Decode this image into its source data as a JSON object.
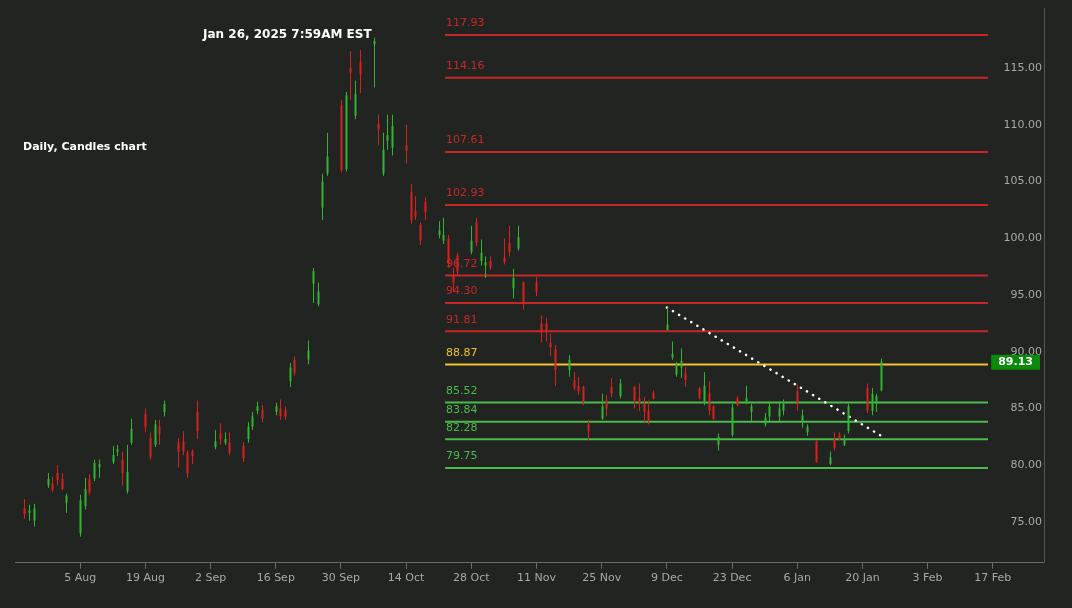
{
  "chart_data": {
    "type": "candlestick",
    "title": "Daily, Candles chart",
    "subtitle": "Jan 26, 2025 7:59AM EST",
    "xlim": [
      "2024-07-22",
      "2025-02-28"
    ],
    "xticks": [
      {
        "value": "2024-08-05",
        "label": "5 Aug"
      },
      {
        "value": "2024-08-19",
        "label": "19 Aug"
      },
      {
        "value": "2024-09-02",
        "label": "2 Sep"
      },
      {
        "value": "2024-09-16",
        "label": "16 Sep"
      },
      {
        "value": "2024-09-30",
        "label": "30 Sep"
      },
      {
        "value": "2024-10-14",
        "label": "14 Oct"
      },
      {
        "value": "2024-10-28",
        "label": "28 Oct"
      },
      {
        "value": "2024-11-11",
        "label": "11 Nov"
      },
      {
        "value": "2024-11-25",
        "label": "25 Nov"
      },
      {
        "value": "2024-12-09",
        "label": "9 Dec"
      },
      {
        "value": "2024-12-23",
        "label": "23 Dec"
      },
      {
        "value": "2025-01-06",
        "label": "6 Jan"
      },
      {
        "value": "2025-01-20",
        "label": "20 Jan"
      },
      {
        "value": "2025-02-03",
        "label": "3 Feb"
      },
      {
        "value": "2025-02-17",
        "label": "17 Feb"
      }
    ],
    "ylim": [
      71.4,
      120.3
    ],
    "yticks": [
      {
        "value": 75,
        "label": "75.00"
      },
      {
        "value": 80,
        "label": "80.00"
      },
      {
        "value": 85,
        "label": "85.00"
      },
      {
        "value": 90,
        "label": "90.00"
      },
      {
        "value": 95,
        "label": "95.00"
      },
      {
        "value": 100,
        "label": "100.00"
      },
      {
        "value": 105,
        "label": "105.00"
      },
      {
        "value": 110,
        "label": "110.00"
      },
      {
        "value": 115,
        "label": "115.00"
      }
    ],
    "grid": false,
    "legend": false,
    "series": [
      {
        "type": "candlestick",
        "color": "#2fb52f",
        "x": [
          "2024-07-25",
          "2024-07-26",
          "2024-07-29",
          "2024-08-02",
          "2024-08-05",
          "2024-08-06",
          "2024-08-08",
          "2024-08-09",
          "2024-08-12",
          "2024-08-13",
          "2024-08-15",
          "2024-08-16",
          "2024-08-21",
          "2024-08-23",
          "2024-09-03",
          "2024-09-05",
          "2024-09-10",
          "2024-09-11",
          "2024-09-12",
          "2024-09-16",
          "2024-09-19",
          "2024-09-23",
          "2024-09-24",
          "2024-09-25",
          "2024-09-26",
          "2024-09-27",
          "2024-10-01",
          "2024-10-03",
          "2024-10-07",
          "2024-10-09",
          "2024-10-10",
          "2024-10-11",
          "2024-10-21",
          "2024-10-22",
          "2024-10-28",
          "2024-10-30",
          "2024-10-31",
          "2024-11-06",
          "2024-11-07",
          "2024-11-18",
          "2024-11-25",
          "2024-11-29",
          "2024-12-09",
          "2024-12-10",
          "2024-12-11",
          "2024-12-12",
          "2024-12-17",
          "2024-12-20",
          "2024-12-23",
          "2024-12-26",
          "2024-12-27",
          "2024-12-30",
          "2024-12-31",
          "2025-01-02",
          "2025-01-03",
          "2025-01-07",
          "2025-01-08",
          "2025-01-13",
          "2025-01-16",
          "2025-01-17",
          "2025-01-22",
          "2025-01-23",
          "2025-01-24"
        ],
        "ohlc": [
          [
            75.8,
            76.5,
            75.1,
            76.0
          ],
          [
            75.1,
            76.6,
            74.6,
            76.2
          ],
          [
            78.2,
            79.3,
            78.0,
            78.8
          ],
          [
            76.7,
            77.5,
            75.8,
            77.3
          ],
          [
            74.0,
            77.4,
            73.7,
            76.9
          ],
          [
            76.4,
            78.9,
            76.1,
            77.9
          ],
          [
            78.8,
            80.5,
            78.6,
            80.2
          ],
          [
            79.8,
            80.5,
            78.9,
            80.1
          ],
          [
            80.3,
            81.7,
            80.1,
            80.9
          ],
          [
            81.2,
            81.8,
            80.8,
            81.4
          ],
          [
            77.7,
            81.8,
            77.5,
            79.4
          ],
          [
            82.0,
            84.1,
            81.8,
            83.2
          ],
          [
            81.8,
            84.0,
            81.6,
            83.6
          ],
          [
            84.7,
            85.7,
            84.3,
            85.4
          ],
          [
            81.6,
            83.1,
            81.4,
            82.1
          ],
          [
            82.0,
            82.9,
            81.8,
            82.3
          ],
          [
            82.3,
            83.8,
            82.0,
            83.4
          ],
          [
            83.4,
            84.7,
            83.1,
            84.3
          ],
          [
            84.8,
            85.6,
            84.5,
            85.2
          ],
          [
            84.7,
            85.5,
            84.4,
            85.2
          ],
          [
            87.4,
            89.0,
            86.9,
            88.6
          ],
          [
            89.3,
            91.0,
            88.9,
            90.1
          ],
          [
            96.0,
            97.4,
            94.3,
            97.1
          ],
          [
            94.2,
            96.1,
            94.0,
            95.3
          ],
          [
            102.7,
            105.7,
            101.6,
            105.0
          ],
          [
            105.7,
            109.3,
            105.5,
            107.2
          ],
          [
            106.1,
            112.9,
            105.9,
            112.6
          ],
          [
            110.8,
            113.9,
            110.5,
            112.7
          ],
          [
            117.1,
            117.7,
            113.3,
            117.4
          ],
          [
            105.7,
            109.3,
            105.5,
            107.8
          ],
          [
            108.6,
            110.9,
            107.8,
            109.1
          ],
          [
            108.0,
            110.9,
            107.3,
            109.9
          ],
          [
            100.3,
            101.5,
            100.0,
            100.7
          ],
          [
            99.8,
            101.8,
            99.5,
            100.3
          ],
          [
            98.8,
            101.1,
            98.6,
            99.8
          ],
          [
            98.0,
            99.9,
            97.6,
            98.7
          ],
          [
            97.6,
            98.4,
            96.5,
            97.9
          ],
          [
            95.6,
            97.3,
            94.7,
            96.5
          ],
          [
            99.1,
            101.1,
            98.9,
            100.1
          ],
          [
            88.4,
            89.7,
            87.8,
            89.3
          ],
          [
            84.1,
            86.3,
            84.0,
            85.2
          ],
          [
            86.1,
            87.6,
            85.9,
            87.2
          ],
          [
            91.9,
            93.9,
            91.9,
            92.4
          ],
          [
            89.5,
            90.9,
            89.3,
            89.8
          ],
          [
            88.0,
            89.1,
            87.8,
            89.0
          ],
          [
            88.6,
            90.3,
            87.7,
            89.2
          ],
          [
            85.6,
            88.2,
            85.3,
            87.0
          ],
          [
            81.8,
            82.8,
            81.3,
            82.5
          ],
          [
            82.7,
            85.4,
            82.5,
            85.1
          ],
          [
            85.5,
            87.0,
            85.4,
            85.9
          ],
          [
            84.7,
            85.4,
            83.9,
            85.2
          ],
          [
            83.6,
            84.6,
            83.4,
            84.2
          ],
          [
            84.3,
            85.6,
            83.9,
            85.2
          ],
          [
            84.3,
            85.6,
            83.9,
            85.0
          ],
          [
            84.8,
            85.8,
            84.4,
            85.4
          ],
          [
            83.9,
            84.9,
            83.3,
            84.4
          ],
          [
            82.9,
            83.6,
            82.6,
            83.4
          ],
          [
            80.1,
            81.2,
            80.0,
            80.7
          ],
          [
            81.8,
            82.7,
            81.7,
            82.3
          ],
          [
            83.0,
            85.4,
            82.8,
            85.2
          ],
          [
            84.8,
            86.8,
            84.4,
            86.3
          ],
          [
            85.6,
            86.3,
            84.7,
            86.1
          ],
          [
            86.6,
            89.4,
            86.5,
            89.13
          ]
        ]
      },
      {
        "type": "candlestick",
        "color": "#d8201c",
        "x": [
          "2024-07-24",
          "2024-07-30",
          "2024-07-31",
          "2024-08-01",
          "2024-08-07",
          "2024-08-14",
          "2024-08-19",
          "2024-08-20",
          "2024-08-22",
          "2024-08-26",
          "2024-08-27",
          "2024-08-28",
          "2024-08-29",
          "2024-08-30",
          "2024-09-04",
          "2024-09-06",
          "2024-09-09",
          "2024-09-13",
          "2024-09-17",
          "2024-09-18",
          "2024-09-20",
          "2024-09-30",
          "2024-10-02",
          "2024-10-04",
          "2024-10-08",
          "2024-10-14",
          "2024-10-15",
          "2024-10-16",
          "2024-10-17",
          "2024-10-18",
          "2024-10-23",
          "2024-10-24",
          "2024-10-25",
          "2024-10-29",
          "2024-11-01",
          "2024-11-04",
          "2024-11-05",
          "2024-11-08",
          "2024-11-11",
          "2024-11-12",
          "2024-11-13",
          "2024-11-14",
          "2024-11-15",
          "2024-11-19",
          "2024-11-20",
          "2024-11-21",
          "2024-11-22",
          "2024-11-26",
          "2024-11-27",
          "2024-12-02",
          "2024-12-03",
          "2024-12-04",
          "2024-12-05",
          "2024-12-06",
          "2024-12-13",
          "2024-12-16",
          "2024-12-18",
          "2024-12-19",
          "2024-12-24",
          "2025-01-06",
          "2025-01-10",
          "2025-01-14",
          "2025-01-15",
          "2025-01-21"
        ],
        "ohlc": [
          [
            76.2,
            77.0,
            75.3,
            75.7
          ],
          [
            78.4,
            79.0,
            77.6,
            77.8
          ],
          [
            79.3,
            80.0,
            78.2,
            78.7
          ],
          [
            78.8,
            79.3,
            77.8,
            77.9
          ],
          [
            78.8,
            79.2,
            77.4,
            77.6
          ],
          [
            80.5,
            81.2,
            78.2,
            79.3
          ],
          [
            84.5,
            85.0,
            82.9,
            83.4
          ],
          [
            82.4,
            82.9,
            80.5,
            80.7
          ],
          [
            83.4,
            84.0,
            81.8,
            82.7
          ],
          [
            82.0,
            82.4,
            79.8,
            81.2
          ],
          [
            82.1,
            83.0,
            80.9,
            81.2
          ],
          [
            81.1,
            81.3,
            78.9,
            79.3
          ],
          [
            81.2,
            81.4,
            80.1,
            80.8
          ],
          [
            84.7,
            85.7,
            82.3,
            83.0
          ],
          [
            82.8,
            83.7,
            81.8,
            82.3
          ],
          [
            82.0,
            82.9,
            80.9,
            81.1
          ],
          [
            81.7,
            82.0,
            80.3,
            80.6
          ],
          [
            84.9,
            85.3,
            83.8,
            84.1
          ],
          [
            85.0,
            85.8,
            84.0,
            84.3
          ],
          [
            84.9,
            85.2,
            84.0,
            84.3
          ],
          [
            89.3,
            89.6,
            87.9,
            88.1
          ],
          [
            111.7,
            112.2,
            105.8,
            106.0
          ],
          [
            115.0,
            116.5,
            112.2,
            114.6
          ],
          [
            115.6,
            116.6,
            112.8,
            114.4
          ],
          [
            110.1,
            110.9,
            108.2,
            109.6
          ],
          [
            108.2,
            110.0,
            106.6,
            107.7
          ],
          [
            104.1,
            104.8,
            101.3,
            101.6
          ],
          [
            102.4,
            103.7,
            101.6,
            101.9
          ],
          [
            101.2,
            101.4,
            99.4,
            99.8
          ],
          [
            103.2,
            103.6,
            101.6,
            102.3
          ],
          [
            100.0,
            100.3,
            97.4,
            97.8
          ],
          [
            96.7,
            97.4,
            95.3,
            96.1
          ],
          [
            98.5,
            98.7,
            96.8,
            97.1
          ],
          [
            101.4,
            101.8,
            99.3,
            99.6
          ],
          [
            98.0,
            98.4,
            97.2,
            97.4
          ],
          [
            98.3,
            100.0,
            97.7,
            97.9
          ],
          [
            99.6,
            101.1,
            98.4,
            98.8
          ],
          [
            96.1,
            96.2,
            93.7,
            94.3
          ],
          [
            96.1,
            96.6,
            94.9,
            95.3
          ],
          [
            92.5,
            93.2,
            90.8,
            91.7
          ],
          [
            92.5,
            93.0,
            90.9,
            91.9
          ],
          [
            90.8,
            91.6,
            89.6,
            90.4
          ],
          [
            90.2,
            90.6,
            87.0,
            88.4
          ],
          [
            87.5,
            88.2,
            86.6,
            86.8
          ],
          [
            87.0,
            87.8,
            86.2,
            86.5
          ],
          [
            86.9,
            87.0,
            85.3,
            85.6
          ],
          [
            83.6,
            84.0,
            82.2,
            83.0
          ],
          [
            85.7,
            86.2,
            84.3,
            85.0
          ],
          [
            86.9,
            87.7,
            86.0,
            86.3
          ],
          [
            86.9,
            87.0,
            85.0,
            85.7
          ],
          [
            85.9,
            87.2,
            84.8,
            85.4
          ],
          [
            85.4,
            86.0,
            83.8,
            84.7
          ],
          [
            84.8,
            85.7,
            83.6,
            83.9
          ],
          [
            86.4,
            86.6,
            85.8,
            85.9
          ],
          [
            88.1,
            88.7,
            86.9,
            87.5
          ],
          [
            86.8,
            86.9,
            85.8,
            85.9
          ],
          [
            86.3,
            87.4,
            84.4,
            84.8
          ],
          [
            85.2,
            85.3,
            84.0,
            84.1
          ],
          [
            85.9,
            86.1,
            85.2,
            85.3
          ],
          [
            86.5,
            87.1,
            84.8,
            85.4
          ],
          [
            82.1,
            82.2,
            80.2,
            80.3
          ],
          [
            82.3,
            82.9,
            81.3,
            81.5
          ],
          [
            82.7,
            82.9,
            82.2,
            82.3
          ],
          [
            86.8,
            87.2,
            84.6,
            84.8
          ]
        ]
      },
      {
        "type": "line",
        "color": "#ffffff",
        "line_style": "dotted",
        "marker": "none",
        "x": [
          "2024-12-09",
          "2025-01-24"
        ],
        "values": [
          93.9,
          82.6
        ]
      }
    ],
    "ref_lines": [
      {
        "axis": "y",
        "value": 117.93,
        "label": "117.93",
        "color": "#c62828"
      },
      {
        "axis": "y",
        "value": 114.16,
        "label": "114.16",
        "color": "#c62828"
      },
      {
        "axis": "y",
        "value": 107.61,
        "label": "107.61",
        "color": "#c62828"
      },
      {
        "axis": "y",
        "value": 102.93,
        "label": "102.93",
        "color": "#c62828"
      },
      {
        "axis": "y",
        "value": 96.72,
        "label": "96.72",
        "color": "#c62828"
      },
      {
        "axis": "y",
        "value": 94.3,
        "label": "94.30",
        "color": "#c62828"
      },
      {
        "axis": "y",
        "value": 91.81,
        "label": "91.81",
        "color": "#c62828"
      },
      {
        "axis": "y",
        "value": 88.87,
        "label": "88.87",
        "color": "#f2c230"
      },
      {
        "axis": "y",
        "value": 85.52,
        "label": "85.52",
        "color": "#4cbb4c"
      },
      {
        "axis": "y",
        "value": 83.84,
        "label": "83.84",
        "color": "#4cbb4c"
      },
      {
        "axis": "y",
        "value": 82.28,
        "label": "82.28",
        "color": "#4cbb4c"
      },
      {
        "axis": "y",
        "value": 79.75,
        "label": "79.75",
        "color": "#4cbb4c"
      }
    ],
    "annotations": [
      "89.13"
    ]
  }
}
